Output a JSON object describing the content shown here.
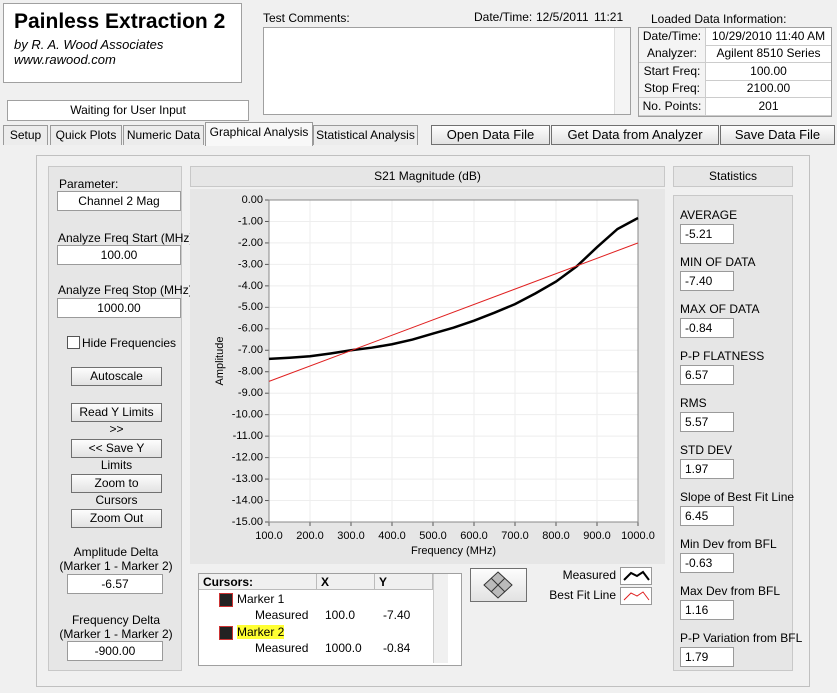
{
  "header": {
    "title": "Painless Extraction 2",
    "subtitle": "by R. A. Wood Associates",
    "url": "www.rawood.com",
    "status": "Waiting for User Input"
  },
  "comments": {
    "label": "Test Comments:",
    "date_label": "Date/Time:",
    "date": "12/5/2011",
    "time": "11:21"
  },
  "loaded_info": {
    "title": "Loaded Data Information:",
    "rows": [
      [
        "Date/Time:",
        "10/29/2010 11:40 AM"
      ],
      [
        "Analyzer:",
        "Agilent 8510 Series"
      ],
      [
        "Start Freq:",
        "100.00"
      ],
      [
        "Stop Freq:",
        "2100.00"
      ],
      [
        "No. Points:",
        "201"
      ]
    ]
  },
  "tabs": [
    "Setup",
    "Quick Plots",
    "Numeric Data",
    "Graphical Analysis",
    "Statistical Analysis"
  ],
  "file_buttons": [
    "Open Data File",
    "Get Data from Analyzer",
    "Save Data File"
  ],
  "controls": {
    "parameter_label": "Parameter:",
    "parameter": "Channel 2 Mag",
    "start_label": "Analyze Freq Start (MHz)",
    "start": "100.00",
    "stop_label": "Analyze Freq Stop (MHz)",
    "stop": "1000.00",
    "hide_frequencies": "Hide Frequencies",
    "buttons": [
      "Autoscale",
      "Read Y Limits >>",
      "<< Save Y Limits",
      "Zoom to Cursors",
      "Zoom Out"
    ],
    "amp_delta_label": "Amplitude Delta\n(Marker 1 - Marker 2)",
    "amp_delta": "-6.57",
    "freq_delta_label": "Frequency Delta\n(Marker 1 - Marker 2)",
    "freq_delta": "-900.00"
  },
  "cursors": {
    "header": [
      "Cursors:",
      "X",
      "Y"
    ],
    "markers": [
      {
        "name": "Marker 1",
        "plot": "Measured",
        "x": "100.0",
        "y": "-7.40"
      },
      {
        "name": "Marker 2",
        "plot": "Measured",
        "x": "1000.0",
        "y": "-0.84"
      }
    ]
  },
  "statistics": {
    "title": "Statistics",
    "items": [
      {
        "label": "AVERAGE",
        "value": "-5.21"
      },
      {
        "label": "MIN OF DATA",
        "value": "-7.40"
      },
      {
        "label": "MAX OF DATA",
        "value": "-0.84"
      },
      {
        "label": "P-P FLATNESS",
        "value": "6.57"
      },
      {
        "label": "RMS",
        "value": "5.57"
      },
      {
        "label": "STD DEV",
        "value": "1.97"
      },
      {
        "label": "Slope of Best Fit Line",
        "value": "6.45"
      },
      {
        "label": "Min Dev from BFL",
        "value": "-0.63"
      },
      {
        "label": "Max Dev from BFL",
        "value": "1.16"
      },
      {
        "label": "P-P Variation from BFL",
        "value": "1.79"
      }
    ]
  },
  "chart_data": {
    "type": "line",
    "title": "S21 Magnitude (dB)",
    "x_label": "Frequency (MHz)",
    "y_label": "Amplitude",
    "xlim": [
      100,
      1000
    ],
    "ylim": [
      -15,
      0
    ],
    "grid": true,
    "xticks": [
      {
        "value": 100,
        "label": "100.0"
      },
      {
        "value": 200,
        "label": "200.0"
      },
      {
        "value": 300,
        "label": "300.0"
      },
      {
        "value": 400,
        "label": "400.0"
      },
      {
        "value": 500,
        "label": "500.0"
      },
      {
        "value": 600,
        "label": "600.0"
      },
      {
        "value": 700,
        "label": "700.0"
      },
      {
        "value": 800,
        "label": "800.0"
      },
      {
        "value": 900,
        "label": "900.0"
      },
      {
        "value": 1000,
        "label": "1000.0"
      }
    ],
    "yticks": [
      {
        "value": 0,
        "label": "0.00"
      },
      {
        "value": -1,
        "label": "-1.00"
      },
      {
        "value": -2,
        "label": "-2.00"
      },
      {
        "value": -3,
        "label": "-3.00"
      },
      {
        "value": -4,
        "label": "-4.00"
      },
      {
        "value": -5,
        "label": "-5.00"
      },
      {
        "value": -6,
        "label": "-6.00"
      },
      {
        "value": -7,
        "label": "-7.00"
      },
      {
        "value": -8,
        "label": "-8.00"
      },
      {
        "value": -9,
        "label": "-9.00"
      },
      {
        "value": -10,
        "label": "-10.00"
      },
      {
        "value": -11,
        "label": "-11.00"
      },
      {
        "value": -12,
        "label": "-12.00"
      },
      {
        "value": -13,
        "label": "-13.00"
      },
      {
        "value": -14,
        "label": "-14.00"
      },
      {
        "value": -15,
        "label": "-15.00"
      }
    ],
    "series": [
      {
        "name": "Measured",
        "color": "#000000",
        "x": [
          100,
          150,
          200,
          250,
          300,
          350,
          400,
          450,
          500,
          550,
          600,
          650,
          700,
          750,
          800,
          850,
          900,
          950,
          1000
        ],
        "values": [
          -7.4,
          -7.35,
          -7.28,
          -7.15,
          -7.0,
          -6.88,
          -6.72,
          -6.5,
          -6.22,
          -5.95,
          -5.62,
          -5.25,
          -4.85,
          -4.35,
          -3.8,
          -3.1,
          -2.2,
          -1.35,
          -0.84
        ]
      },
      {
        "name": "Best Fit Line",
        "color": "#e02020",
        "x": [
          100,
          1000
        ],
        "values": [
          -8.45,
          -2.0
        ]
      }
    ]
  }
}
